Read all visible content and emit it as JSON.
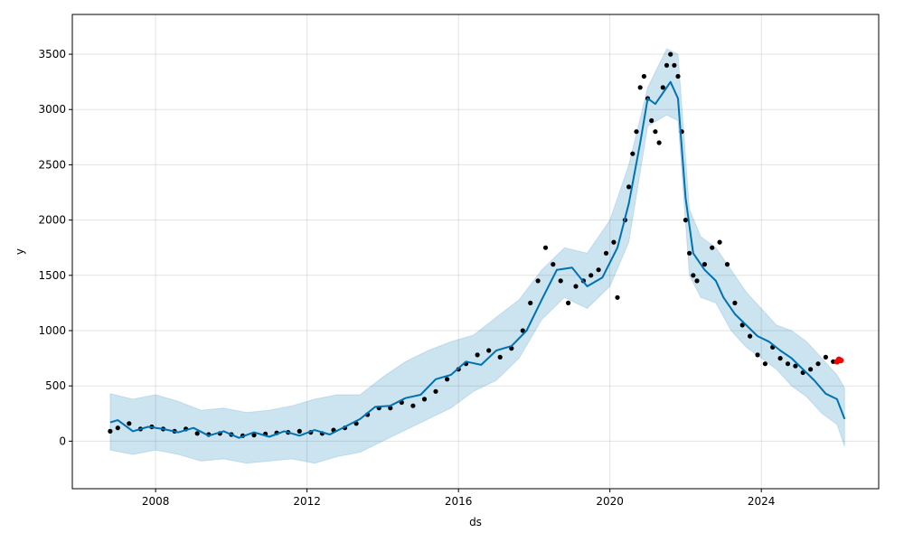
{
  "chart_data": {
    "type": "line",
    "title": "",
    "xlabel": "ds",
    "ylabel": "y",
    "xlim": [
      2005.8,
      2027.1
    ],
    "ylim": [
      -430,
      3860
    ],
    "x_ticks": [
      2008,
      2012,
      2016,
      2020,
      2024
    ],
    "y_ticks": [
      0,
      500,
      1000,
      1500,
      2000,
      2500,
      3000,
      3500
    ],
    "grid": true,
    "colors": {
      "observed": "#000000",
      "forecast_line": "#0072B2",
      "uncertainty_band": "#0072B2",
      "future_points": "#ff0000"
    },
    "series": [
      {
        "kind": "scatter",
        "x": [
          2006.8,
          2007.0,
          2007.3,
          2007.6,
          2007.9,
          2008.2,
          2008.5,
          2008.8,
          2009.1,
          2009.4,
          2009.7,
          2010.0,
          2010.3,
          2010.6,
          2010.9,
          2011.2,
          2011.5,
          2011.8,
          2012.1,
          2012.4,
          2012.7,
          2013.0,
          2013.3,
          2013.6,
          2013.9,
          2014.2,
          2014.5,
          2014.8,
          2015.1,
          2015.4,
          2015.7,
          2016.0,
          2016.2,
          2016.5,
          2016.8,
          2017.1,
          2017.4,
          2017.7,
          2017.9,
          2018.1,
          2018.3,
          2018.5,
          2018.7,
          2018.9,
          2019.1,
          2019.3,
          2019.5,
          2019.7,
          2019.9,
          2020.1,
          2020.2,
          2020.4,
          2020.5,
          2020.6,
          2020.7,
          2020.8,
          2020.9,
          2021.0,
          2021.1,
          2021.2,
          2021.3,
          2021.4,
          2021.5,
          2021.6,
          2021.7,
          2021.8,
          2021.9,
          2022.0,
          2022.1,
          2022.2,
          2022.3,
          2022.5,
          2022.7,
          2022.9,
          2023.1,
          2023.3,
          2023.5,
          2023.7,
          2023.9,
          2024.1,
          2024.3,
          2024.5,
          2024.7,
          2024.9,
          2025.1,
          2025.3,
          2025.5,
          2025.7,
          2025.9
        ],
        "y": [
          90,
          120,
          160,
          110,
          130,
          110,
          90,
          110,
          70,
          60,
          70,
          60,
          50,
          55,
          65,
          75,
          80,
          90,
          80,
          70,
          100,
          120,
          160,
          240,
          300,
          300,
          350,
          320,
          380,
          450,
          560,
          650,
          700,
          780,
          820,
          760,
          840,
          1000,
          1250,
          1450,
          1750,
          1600,
          1450,
          1250,
          1400,
          1450,
          1500,
          1550,
          1700,
          1800,
          1300,
          2000,
          2300,
          2600,
          2800,
          3200,
          3300,
          3100,
          2900,
          2800,
          2700,
          3200,
          3400,
          3500,
          3400,
          3300,
          2800,
          2000,
          1700,
          1500,
          1450,
          1600,
          1750,
          1800,
          1600,
          1250,
          1050,
          950,
          780,
          700,
          850,
          750,
          700,
          680,
          620,
          650,
          700,
          760,
          720
        ]
      },
      {
        "kind": "line",
        "x": [
          2006.8,
          2007.0,
          2007.4,
          2007.8,
          2008.2,
          2008.6,
          2009.0,
          2009.4,
          2009.8,
          2010.2,
          2010.6,
          2011.0,
          2011.4,
          2011.8,
          2012.2,
          2012.6,
          2013.0,
          2013.4,
          2013.8,
          2014.2,
          2014.6,
          2015.0,
          2015.4,
          2015.8,
          2016.2,
          2016.6,
          2017.0,
          2017.4,
          2017.8,
          2018.2,
          2018.6,
          2019.0,
          2019.4,
          2019.8,
          2020.2,
          2020.5,
          2020.8,
          2021.0,
          2021.2,
          2021.4,
          2021.6,
          2021.8,
          2022.0,
          2022.2,
          2022.5,
          2022.8,
          2023.0,
          2023.3,
          2023.6,
          2023.9,
          2024.2,
          2024.5,
          2024.8,
          2025.1,
          2025.4,
          2025.7,
          2026.0,
          2026.2
        ],
        "y": [
          170,
          190,
          90,
          130,
          110,
          80,
          120,
          50,
          90,
          30,
          80,
          40,
          90,
          50,
          100,
          60,
          130,
          200,
          310,
          320,
          390,
          420,
          560,
          600,
          720,
          690,
          820,
          860,
          1000,
          1280,
          1550,
          1570,
          1400,
          1480,
          1750,
          2150,
          2700,
          3100,
          3050,
          3150,
          3250,
          3100,
          2200,
          1700,
          1550,
          1450,
          1300,
          1150,
          1050,
          950,
          900,
          820,
          750,
          650,
          550,
          430,
          380,
          200
        ]
      },
      {
        "kind": "band",
        "x": [
          2006.8,
          2007.4,
          2008.0,
          2008.6,
          2009.2,
          2009.8,
          2010.4,
          2011.0,
          2011.6,
          2012.2,
          2012.8,
          2013.4,
          2014.0,
          2014.6,
          2015.2,
          2015.8,
          2016.4,
          2017.0,
          2017.6,
          2018.2,
          2018.8,
          2019.4,
          2020.0,
          2020.5,
          2021.0,
          2021.5,
          2021.8,
          2022.1,
          2022.4,
          2022.8,
          2023.2,
          2023.6,
          2024.0,
          2024.4,
          2024.8,
          2025.2,
          2025.6,
          2026.0,
          2026.2
        ],
        "lower": [
          -80,
          -120,
          -80,
          -120,
          -180,
          -160,
          -200,
          -180,
          -160,
          -200,
          -140,
          -100,
          0,
          100,
          200,
          300,
          450,
          550,
          750,
          1100,
          1300,
          1200,
          1400,
          1800,
          2850,
          2950,
          2900,
          1500,
          1300,
          1250,
          1000,
          850,
          750,
          650,
          500,
          400,
          250,
          150,
          -50
        ],
        "upper": [
          430,
          380,
          420,
          360,
          280,
          300,
          260,
          280,
          320,
          380,
          420,
          420,
          580,
          720,
          820,
          900,
          960,
          1120,
          1280,
          1550,
          1750,
          1700,
          2000,
          2500,
          3200,
          3550,
          3500,
          2100,
          1850,
          1750,
          1550,
          1350,
          1200,
          1050,
          1000,
          900,
          750,
          600,
          480
        ]
      },
      {
        "kind": "scatter",
        "x": [
          2026.0,
          2026.05,
          2026.1
        ],
        "y": [
          720,
          740,
          730
        ]
      }
    ]
  }
}
